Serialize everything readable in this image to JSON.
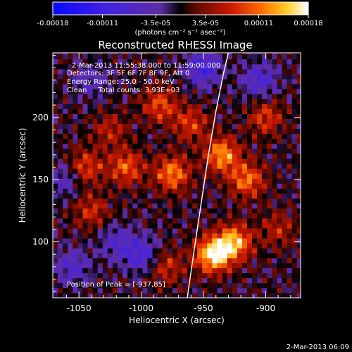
{
  "chart_data": {
    "type": "heatmap",
    "title": "Reconstructed RHESSI Image",
    "xlabel": "Heliocentric X (arcsec)",
    "ylabel": "Heliocentric Y (arcsec)",
    "xlim": [
      -1071,
      -872
    ],
    "ylim": [
      55,
      252
    ],
    "xticks": [
      -1050,
      -1000,
      -950,
      -900
    ],
    "yticks": [
      100,
      150,
      200
    ],
    "colorbar": {
      "min": -0.00018,
      "max": 0.00018,
      "tick_values": [
        -0.00018,
        -0.00011,
        -3.5e-05,
        3.5e-05,
        0.00011,
        0.00018
      ],
      "tick_labels": [
        "-0.00018",
        "-0.00011",
        "-3.5e-05",
        "3.5e-05",
        "0.00011",
        "0.00018"
      ],
      "units_label": "(photons cm⁻² s⁻¹ asec⁻²)"
    },
    "annotations": [
      "2-Mar-2013 11:55:38.000 to 11:59:00.000",
      "Detectors: 3F 5F 6F 7F 8F 9F, Att 0",
      "Energy Range: 25.0 - 50.0 keV",
      "Clean     Total counts: 3.93E+03"
    ],
    "peak_label": "Position of Peak = [-937,85]",
    "limb_curve": {
      "x": [
        -963,
        -958,
        -952,
        -946,
        -940,
        -934,
        -930
      ],
      "y": [
        55,
        90,
        130,
        170,
        205,
        235,
        252
      ]
    },
    "features": [
      {
        "x": -942,
        "y": 90,
        "value": 0.00018
      },
      {
        "x": -925,
        "y": 100,
        "value": 0.00014
      },
      {
        "x": -935,
        "y": 170,
        "value": 0.00013
      },
      {
        "x": -915,
        "y": 150,
        "value": 0.00011
      },
      {
        "x": -975,
        "y": 155,
        "value": 0.00012
      },
      {
        "x": -1012,
        "y": 160,
        "value": 0.0001
      },
      {
        "x": -1045,
        "y": 160,
        "value": 9e-05
      },
      {
        "x": -1040,
        "y": 125,
        "value": 7e-05
      },
      {
        "x": -985,
        "y": 210,
        "value": 9e-05
      },
      {
        "x": -960,
        "y": 195,
        "value": 8e-05
      },
      {
        "x": -1025,
        "y": 190,
        "value": 6e-05
      },
      {
        "x": -980,
        "y": 80,
        "value": 7e-05
      },
      {
        "x": -900,
        "y": 200,
        "value": 8e-05
      },
      {
        "x": -890,
        "y": 110,
        "value": 6e-05
      },
      {
        "x": -1060,
        "y": 150,
        "value": -6e-05
      },
      {
        "x": -1000,
        "y": 90,
        "value": -9e-05
      },
      {
        "x": -1055,
        "y": 80,
        "value": -7e-05
      },
      {
        "x": -950,
        "y": 240,
        "value": -0.0001
      },
      {
        "x": -905,
        "y": 230,
        "value": -8e-05
      },
      {
        "x": -1040,
        "y": 230,
        "value": -5e-05
      },
      {
        "x": -1020,
        "y": 100,
        "value": -6e-05
      }
    ]
  },
  "footer": {
    "date": "2-Mar-2013 06:09"
  }
}
